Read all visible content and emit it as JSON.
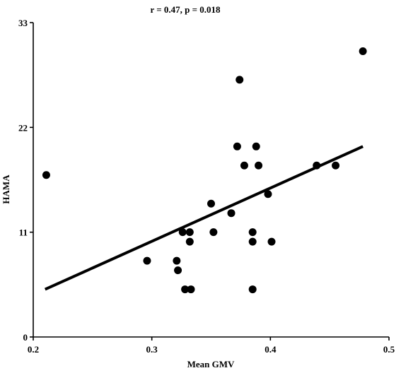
{
  "chart_data": {
    "type": "scatter",
    "title": "r = 0.47, p = 0.018",
    "xlabel": "Mean GMV",
    "ylabel": "HAMA",
    "xlim": [
      0.2,
      0.5
    ],
    "ylim": [
      0,
      33
    ],
    "xticks": [
      0.2,
      0.3,
      0.4,
      0.5
    ],
    "xtick_labels": [
      "0.2",
      "0.3",
      "0.4",
      "0.5"
    ],
    "yticks": [
      0,
      11,
      22,
      33
    ],
    "ytick_labels": [
      "0",
      "11",
      "22",
      "33"
    ],
    "grid": false,
    "points": [
      {
        "x": 0.211,
        "y": 17
      },
      {
        "x": 0.296,
        "y": 8
      },
      {
        "x": 0.321,
        "y": 8
      },
      {
        "x": 0.322,
        "y": 7
      },
      {
        "x": 0.326,
        "y": 11
      },
      {
        "x": 0.328,
        "y": 5
      },
      {
        "x": 0.332,
        "y": 11
      },
      {
        "x": 0.332,
        "y": 10
      },
      {
        "x": 0.333,
        "y": 5
      },
      {
        "x": 0.35,
        "y": 14
      },
      {
        "x": 0.352,
        "y": 11
      },
      {
        "x": 0.367,
        "y": 13
      },
      {
        "x": 0.372,
        "y": 20
      },
      {
        "x": 0.374,
        "y": 27
      },
      {
        "x": 0.378,
        "y": 18
      },
      {
        "x": 0.385,
        "y": 11
      },
      {
        "x": 0.385,
        "y": 10
      },
      {
        "x": 0.385,
        "y": 5
      },
      {
        "x": 0.388,
        "y": 20
      },
      {
        "x": 0.39,
        "y": 18
      },
      {
        "x": 0.398,
        "y": 15
      },
      {
        "x": 0.401,
        "y": 10
      },
      {
        "x": 0.439,
        "y": 18
      },
      {
        "x": 0.455,
        "y": 18
      },
      {
        "x": 0.478,
        "y": 30
      }
    ],
    "trendline": {
      "x": [
        0.21,
        0.478
      ],
      "y": [
        5,
        20
      ]
    }
  }
}
